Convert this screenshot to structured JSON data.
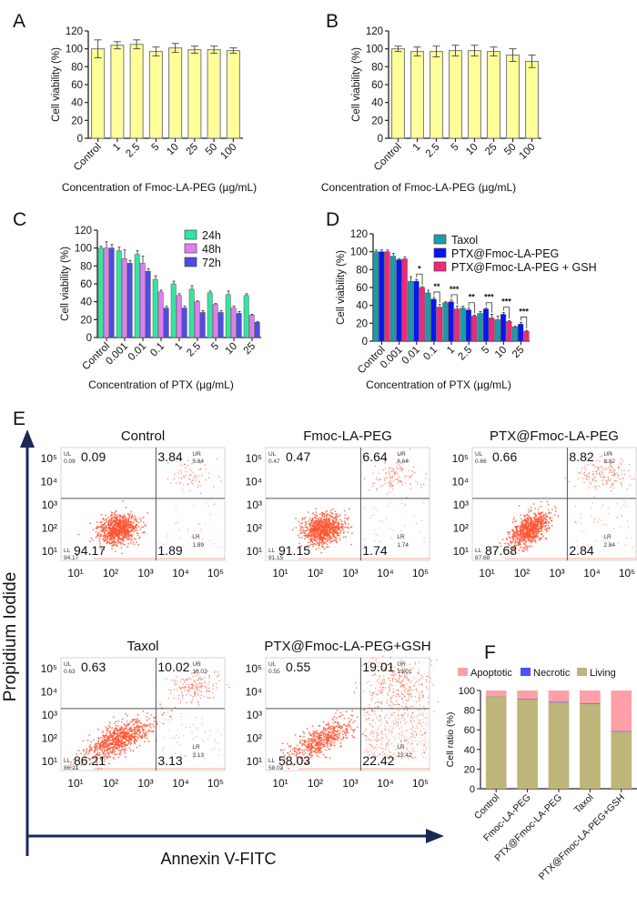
{
  "chart_data": [
    {
      "panel": "A",
      "type": "bar",
      "title": "",
      "xlabel": "Concentration of Fmoc-LA-PEG (µg/mL)",
      "ylabel": "Cell viability (%)",
      "ylim": [
        0,
        120
      ],
      "yticks": [
        0,
        20,
        40,
        60,
        80,
        100,
        120
      ],
      "categories": [
        "Control",
        "1",
        "2.5",
        "5",
        "10",
        "25",
        "50",
        "100"
      ],
      "values": [
        100,
        104,
        105,
        97,
        101,
        99,
        99,
        98
      ],
      "errors": [
        10,
        4,
        5,
        5,
        5,
        4,
        4,
        3
      ],
      "bar_color": "#ffff99"
    },
    {
      "panel": "B",
      "type": "bar",
      "title": "",
      "xlabel": "Concentration of Fmoc-LA-PEG (µg/mL)",
      "ylabel": "Cell viability (%)",
      "ylim": [
        0,
        120
      ],
      "yticks": [
        0,
        20,
        40,
        60,
        80,
        100,
        120
      ],
      "categories": [
        "Control",
        "1",
        "2.5",
        "5",
        "10",
        "25",
        "50",
        "100"
      ],
      "values": [
        100,
        97,
        97,
        98,
        98,
        97,
        93,
        86
      ],
      "errors": [
        3,
        5,
        6,
        6,
        6,
        5,
        7,
        7
      ],
      "bar_color": "#ffff99"
    },
    {
      "panel": "C",
      "type": "bar",
      "title": "",
      "xlabel": "Concentration of PTX (µg/mL)",
      "ylabel": "Cell viability (%)",
      "ylim": [
        0,
        120
      ],
      "yticks": [
        0,
        20,
        40,
        60,
        80,
        100,
        120
      ],
      "categories": [
        "Control",
        "0.001",
        "0.01",
        "0.1",
        "1",
        "2.5",
        "5",
        "10",
        "25"
      ],
      "legend_position": "top-right",
      "series": [
        {
          "name": "24h",
          "color": "#33e6a0",
          "values": [
            100,
            97,
            93,
            65,
            60,
            54,
            50,
            48,
            47
          ],
          "errors": [
            2,
            4,
            4,
            4,
            3,
            4,
            2,
            4,
            2
          ]
        },
        {
          "name": "48h",
          "color": "#e07ff0",
          "values": [
            100,
            88,
            83,
            51,
            47,
            40,
            37,
            33,
            25
          ],
          "errors": [
            7,
            10,
            8,
            2,
            2,
            1,
            1,
            2,
            1
          ]
        },
        {
          "name": "72h",
          "color": "#4d4de6",
          "values": [
            100,
            83,
            74,
            33,
            33,
            28,
            28,
            27,
            17
          ],
          "errors": [
            4,
            3,
            3,
            2,
            2,
            2,
            2,
            2,
            1
          ]
        }
      ]
    },
    {
      "panel": "D",
      "type": "bar",
      "title": "",
      "xlabel": "Concentration of PTX (µg/mL)",
      "ylabel": "Cell viability (%)",
      "ylim": [
        0,
        120
      ],
      "yticks": [
        0,
        20,
        40,
        60,
        80,
        100,
        120
      ],
      "categories": [
        "Control",
        "0.001",
        "0.01",
        "0.1",
        "1",
        "2.5",
        "5",
        "10",
        "25"
      ],
      "legend_position": "top-right",
      "series": [
        {
          "name": "Taxol",
          "color": "#1e9aa8",
          "values": [
            100,
            95,
            67,
            54,
            43,
            37,
            31,
            24,
            16
          ],
          "errors": [
            2,
            3,
            5,
            3,
            1,
            2,
            2,
            4,
            1
          ]
        },
        {
          "name": "PTX@Fmoc-LA-PEG",
          "color": "#0a14f0",
          "values": [
            100,
            91,
            67,
            47,
            44,
            35,
            36,
            30,
            19
          ],
          "errors": [
            2,
            1,
            2,
            2,
            2,
            2,
            1,
            2,
            2
          ]
        },
        {
          "name": "PTX@Fmoc-LA-PEG + GSH",
          "color": "#f0287a",
          "values": [
            100,
            92,
            60,
            38,
            36,
            28,
            26,
            22,
            11
          ],
          "errors": [
            2,
            2,
            1,
            3,
            3,
            1,
            4,
            1,
            1
          ]
        }
      ],
      "significance": [
        "",
        "",
        "*",
        "**",
        "***",
        "**",
        "***",
        "***",
        "***"
      ]
    },
    {
      "panel": "E",
      "type": "scatter",
      "xlabel": "Annexin V-FITC",
      "ylabel": "Propidium Iodide",
      "axis_ticks": [
        "10¹",
        "10²",
        "10³",
        "10⁴",
        "10⁵"
      ],
      "y_ticks": [
        "10¹",
        "10²",
        "10³",
        "10⁴",
        "10⁵"
      ],
      "quadrant_labels": {
        "ul": "UL",
        "ur": "UR",
        "ll": "LL",
        "lr": "LR"
      },
      "plots": [
        {
          "title": "Control",
          "UL": "0.09",
          "UR": "3.84",
          "LL": "94.17",
          "LR": "1.89"
        },
        {
          "title": "Fmoc-LA-PEG",
          "UL": "0.47",
          "UR": "6.64",
          "LL": "91.15",
          "LR": "1.74"
        },
        {
          "title": "PTX@Fmoc-LA-PEG",
          "UL": "0.66",
          "UR": "8.82",
          "LL": "87.68",
          "LR": "2.84"
        },
        {
          "title": "Taxol",
          "UL": "0.63",
          "UR": "10.02",
          "LL": "86.21",
          "LR": "3.13"
        },
        {
          "title": "PTX@Fmoc-LA-PEG+GSH",
          "UL": "0.55",
          "UR": "19.01",
          "LL": "58.03",
          "LR": "22.42"
        }
      ],
      "dot_color": "#ff5533"
    },
    {
      "panel": "F",
      "type": "bar",
      "stacked": true,
      "ylabel": "Cell ratio (%)",
      "ylim": [
        0,
        100
      ],
      "yticks": [
        0,
        20,
        40,
        60,
        80,
        100
      ],
      "categories": [
        "Control",
        "Fmoc-LA-PEG",
        "PTX@Fmoc-LA-PEG",
        "Taxol",
        "PTX@Fmoc-LA-PEG+GSH"
      ],
      "legend_position": "top",
      "series": [
        {
          "name": "Living",
          "color": "#bdb57a",
          "values": [
            94.17,
            91.15,
            87.68,
            86.21,
            58.03
          ]
        },
        {
          "name": "Necrotic",
          "color": "#5050ff",
          "values": [
            0.09,
            0.47,
            0.66,
            0.63,
            0.55
          ]
        },
        {
          "name": "Apoptotic",
          "color": "#ffa0a8",
          "values": [
            5.73,
            8.38,
            11.66,
            13.15,
            41.43
          ]
        }
      ],
      "legend_order": [
        "Apoptotic",
        "Necrotic",
        "Living"
      ]
    }
  ],
  "panel_labels": [
    "A",
    "B",
    "C",
    "D",
    "E",
    "F"
  ]
}
